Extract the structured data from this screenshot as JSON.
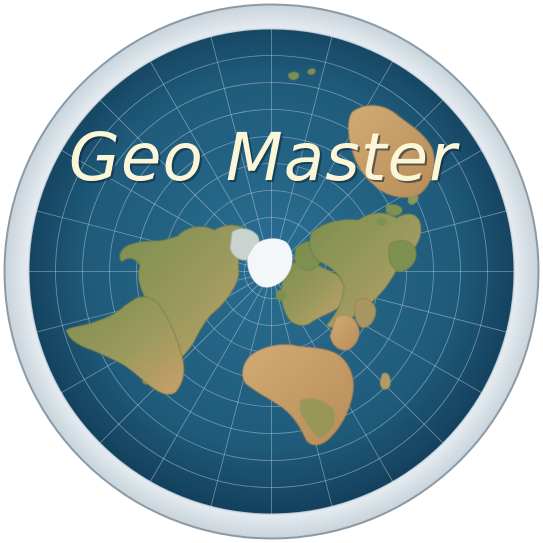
{
  "logo": {
    "title": "Geo Master",
    "map_style": "azimuthal equidistant world map (north-polar)",
    "colors": {
      "ocean": "#1f5a7a",
      "ocean_edge": "#103a55",
      "land_green": "#7d8f4e",
      "land_desert": "#c9a06a",
      "ice": "#e8eef3",
      "ring": "#d5dde4",
      "outline": "#8c9aa6",
      "grid": "#b8ccd8",
      "title_fill": "#fbf6d8",
      "title_shadow": "#0b2233"
    }
  }
}
